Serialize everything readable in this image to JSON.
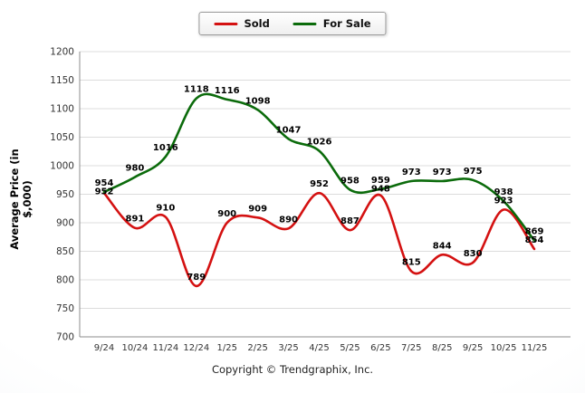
{
  "ylabel": "Average Price (in $,000)",
  "footer": "Copyright © Trendgraphix, Inc.",
  "chart_data": {
    "type": "line",
    "categories": [
      "9/24",
      "10/24",
      "11/24",
      "12/24",
      "1/25",
      "2/25",
      "3/25",
      "4/25",
      "5/25",
      "6/25",
      "7/25",
      "8/25",
      "9/25",
      "10/25",
      "11/25"
    ],
    "series": [
      {
        "name": "Sold",
        "color": "#d41111",
        "values": [
          952,
          891,
          910,
          789,
          900,
          909,
          890,
          952,
          887,
          948,
          815,
          844,
          830,
          923,
          854
        ]
      },
      {
        "name": "For Sale",
        "color": "#0b6b0b",
        "values": [
          954,
          980,
          1016,
          1118,
          1116,
          1098,
          1047,
          1026,
          958,
          959,
          973,
          973,
          975,
          938,
          869
        ]
      }
    ],
    "title": "",
    "xlabel": "",
    "ylabel": "Average Price (in $,000)",
    "ylim": [
      700,
      1200
    ],
    "yticks": [
      700,
      750,
      800,
      850,
      900,
      950,
      1000,
      1050,
      1100,
      1150,
      1200
    ],
    "grid": true,
    "legend_position": "top",
    "colors": {
      "gridline": "#dcdcdc",
      "axis": "#8c8c8c",
      "tick_text": "#333333",
      "data_label": "#000000"
    }
  }
}
